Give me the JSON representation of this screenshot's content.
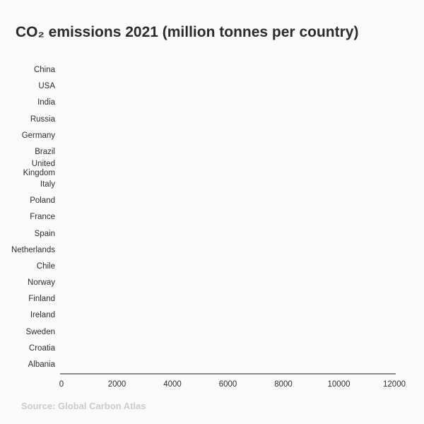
{
  "colors": {
    "background": "#fafafa",
    "title_text": "#2b2b2b",
    "label_text": "#2d2d2d",
    "tick_text": "#2d2d2d",
    "axis_line": "#8c8c8c",
    "source_text": "#cbcbcb"
  },
  "chart_data": {
    "type": "bar",
    "orientation": "horizontal",
    "title": "CO₂ emissions 2021 (million tonnes per country)",
    "categories": [
      "China",
      "USA",
      "India",
      "Russia",
      "Germany",
      "Brazil",
      "United Kingdom",
      "Italy",
      "Poland",
      "France",
      "Spain",
      "Netherlands",
      "Chile",
      "Norway",
      "Finland",
      "Ireland",
      "Sweden",
      "Croatia",
      "Albania"
    ],
    "values": [
      0,
      0,
      0,
      0,
      0,
      0,
      0,
      0,
      0,
      0,
      0,
      0,
      0,
      0,
      0,
      0,
      0,
      0,
      0
    ],
    "bars_visible": false,
    "note": "Plot area is empty: no bars are rendered (zero-width bars / animation start frame)",
    "xlabel": "",
    "ylabel": "",
    "xlim": [
      0,
      12000
    ],
    "x_ticks": [
      0,
      2000,
      4000,
      6000,
      8000,
      10000,
      12000
    ],
    "grid": false,
    "legend": false,
    "source": "Source: Global Carbon Atlas"
  }
}
